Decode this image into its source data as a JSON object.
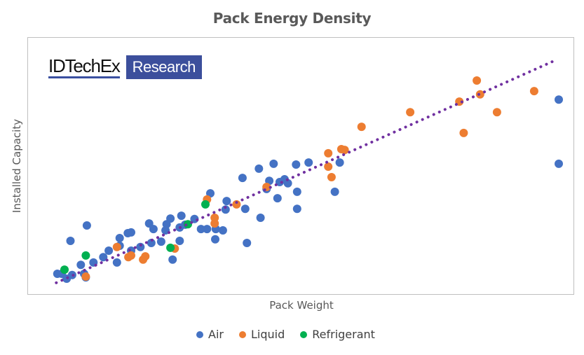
{
  "chart_data": {
    "type": "scatter",
    "title": "Pack Energy Density",
    "xlabel": "Pack Weight",
    "ylabel": "Installed Capacity",
    "xlim": [
      0,
      100
    ],
    "ylim": [
      0,
      100
    ],
    "grid": false,
    "axis_ticks_shown": false,
    "legend_position": "bottom",
    "watermark": {
      "brand": "IDTechEx",
      "tag": "Research"
    },
    "series": [
      {
        "name": "Air",
        "color": "#4472c4",
        "points": [
          [
            5.5,
            7.9
          ],
          [
            6.3,
            7.9
          ],
          [
            7.2,
            6.0
          ],
          [
            8.2,
            7.4
          ],
          [
            7.9,
            20.7
          ],
          [
            10.9,
            26.7
          ],
          [
            9.8,
            11.4
          ],
          [
            10.4,
            7.9
          ],
          [
            10.7,
            6.5
          ],
          [
            12.1,
            12.3
          ],
          [
            13.9,
            14.4
          ],
          [
            14.9,
            16.9
          ],
          [
            16.4,
            12.3
          ],
          [
            16.9,
            21.8
          ],
          [
            16.9,
            18.8
          ],
          [
            18.4,
            23.7
          ],
          [
            19.0,
            24.0
          ],
          [
            19.0,
            16.9
          ],
          [
            20.7,
            18.3
          ],
          [
            22.3,
            27.5
          ],
          [
            23.1,
            25.3
          ],
          [
            22.7,
            19.9
          ],
          [
            24.5,
            20.4
          ],
          [
            25.3,
            24.8
          ],
          [
            25.5,
            27.2
          ],
          [
            26.2,
            29.4
          ],
          [
            26.6,
            13.4
          ],
          [
            27.9,
            20.7
          ],
          [
            28.2,
            30.5
          ],
          [
            27.9,
            25.9
          ],
          [
            28.9,
            27.0
          ],
          [
            30.6,
            29.2
          ],
          [
            31.8,
            25.3
          ],
          [
            32.9,
            25.3
          ],
          [
            33.5,
            39.2
          ],
          [
            34.4,
            21.3
          ],
          [
            34.5,
            25.3
          ],
          [
            35.8,
            24.8
          ],
          [
            36.5,
            36.2
          ],
          [
            36.3,
            32.9
          ],
          [
            39.9,
            33.2
          ],
          [
            40.2,
            19.9
          ],
          [
            39.4,
            45.2
          ],
          [
            42.4,
            48.8
          ],
          [
            42.7,
            29.7
          ],
          [
            43.8,
            40.9
          ],
          [
            44.3,
            44.1
          ],
          [
            45.1,
            50.7
          ],
          [
            45.8,
            37.3
          ],
          [
            46.2,
            43.6
          ],
          [
            47.1,
            44.7
          ],
          [
            47.7,
            43.1
          ],
          [
            49.4,
            39.8
          ],
          [
            49.2,
            50.4
          ],
          [
            49.4,
            33.2
          ],
          [
            51.5,
            51.2
          ],
          [
            56.3,
            39.8
          ],
          [
            57.2,
            51.2
          ],
          [
            97.3,
            75.7
          ],
          [
            97.3,
            50.7
          ]
        ]
      },
      {
        "name": "Liquid",
        "color": "#ed7d31",
        "points": [
          [
            10.7,
            6.8
          ],
          [
            16.4,
            18.3
          ],
          [
            18.5,
            14.4
          ],
          [
            19.0,
            15.0
          ],
          [
            21.2,
            13.4
          ],
          [
            21.6,
            14.7
          ],
          [
            27.0,
            17.7
          ],
          [
            32.9,
            36.8
          ],
          [
            34.3,
            29.7
          ],
          [
            34.3,
            27.5
          ],
          [
            38.3,
            34.9
          ],
          [
            43.8,
            41.7
          ],
          [
            55.1,
            54.8
          ],
          [
            55.1,
            49.6
          ],
          [
            55.7,
            45.5
          ],
          [
            57.5,
            56.4
          ],
          [
            58.1,
            56.1
          ],
          [
            61.2,
            65.1
          ],
          [
            70.1,
            70.8
          ],
          [
            79.1,
            74.9
          ],
          [
            79.9,
            62.7
          ],
          [
            82.3,
            83.1
          ],
          [
            82.9,
            77.7
          ],
          [
            86.0,
            70.8
          ],
          [
            92.8,
            79.0
          ]
        ]
      },
      {
        "name": "Refrigerant",
        "color": "#00b050",
        "points": [
          [
            6.8,
            9.5
          ],
          [
            10.7,
            15.0
          ],
          [
            26.2,
            18.0
          ],
          [
            29.4,
            27.2
          ],
          [
            32.6,
            34.9
          ]
        ]
      }
    ],
    "trendline": {
      "type": "linear",
      "style": "dotted",
      "color": "#7030a0",
      "from": [
        5.3,
        4.4
      ],
      "to": [
        96.7,
        91.0
      ]
    }
  }
}
